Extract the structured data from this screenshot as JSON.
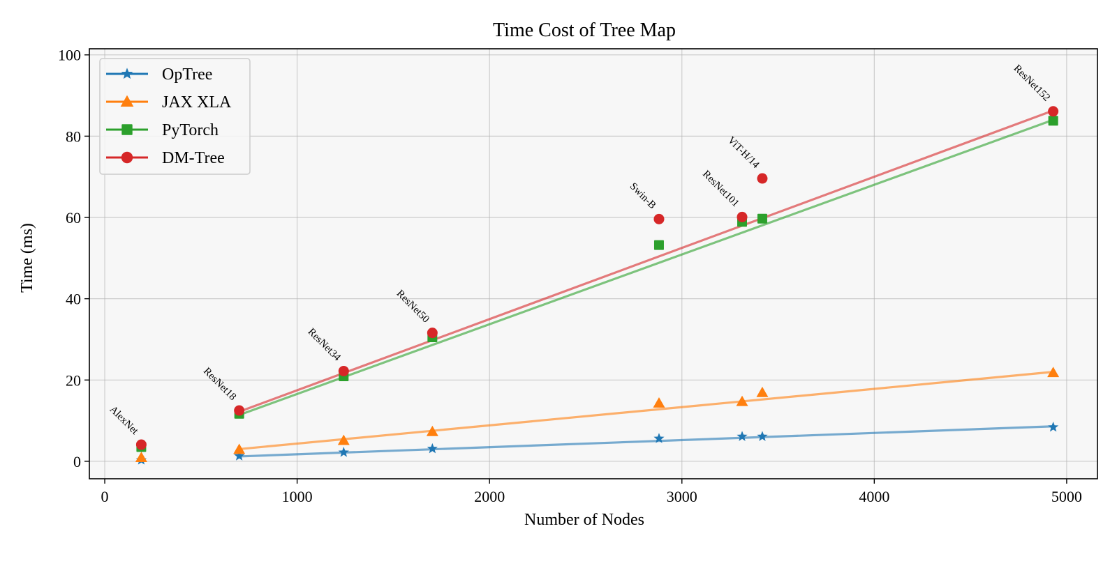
{
  "chart_data": {
    "type": "line",
    "title": "Time Cost of Tree Map",
    "xlabel": "Number of Nodes",
    "ylabel": "Time (ms)",
    "xlim": [
      -80,
      5160
    ],
    "ylim": [
      -4.3,
      101.5
    ],
    "xticks": [
      0,
      1000,
      2000,
      3000,
      4000,
      5000
    ],
    "xtick_labels": [
      "0",
      "1000",
      "2000",
      "3000",
      "4000",
      "5000"
    ],
    "yticks": [
      0,
      20,
      40,
      60,
      80,
      100
    ],
    "ytick_labels": [
      "0",
      "20",
      "40",
      "60",
      "80",
      "100"
    ],
    "grid": true,
    "legend_position": "top-left",
    "models": [
      {
        "name": "AlexNet",
        "x": 190
      },
      {
        "name": "ResNet18",
        "x": 699
      },
      {
        "name": "ResNet34",
        "x": 1242
      },
      {
        "name": "ResNet50",
        "x": 1703
      },
      {
        "name": "Swin-B",
        "x": 2881
      },
      {
        "name": "ResNet101",
        "x": 3313
      },
      {
        "name": "ViT-H/14",
        "x": 3418
      },
      {
        "name": "ResNet152",
        "x": 4930
      }
    ],
    "series": [
      {
        "name": "OpTree",
        "color": "#1f77b4",
        "marker": "star",
        "values": [
          0.3,
          1.3,
          2.2,
          3.1,
          5.6,
          6.1,
          6.1,
          8.4
        ],
        "fit_line": {
          "x": [
            699,
            4930
          ],
          "y": [
            1.2,
            8.6
          ]
        }
      },
      {
        "name": "JAX XLA",
        "color": "#ff7f0e",
        "marker": "triangle",
        "values": [
          0.9,
          2.9,
          5.1,
          7.3,
          14.3,
          14.7,
          16.9,
          21.8
        ],
        "fit_line": {
          "x": [
            699,
            4930
          ],
          "y": [
            3.0,
            22.0
          ]
        }
      },
      {
        "name": "PyTorch",
        "color": "#2ca02c",
        "marker": "square",
        "values": [
          3.5,
          11.7,
          20.9,
          30.5,
          53.2,
          58.9,
          59.7,
          83.8
        ],
        "fit_line": {
          "x": [
            699,
            4930
          ],
          "y": [
            11.4,
            84.0
          ]
        }
      },
      {
        "name": "DM-Tree",
        "color": "#d62728",
        "marker": "circle",
        "values": [
          4.1,
          12.5,
          22.2,
          31.6,
          59.6,
          60.1,
          69.6,
          86.1
        ],
        "fit_line": {
          "x": [
            699,
            4930
          ],
          "y": [
            12.2,
            86.3
          ]
        }
      }
    ]
  }
}
